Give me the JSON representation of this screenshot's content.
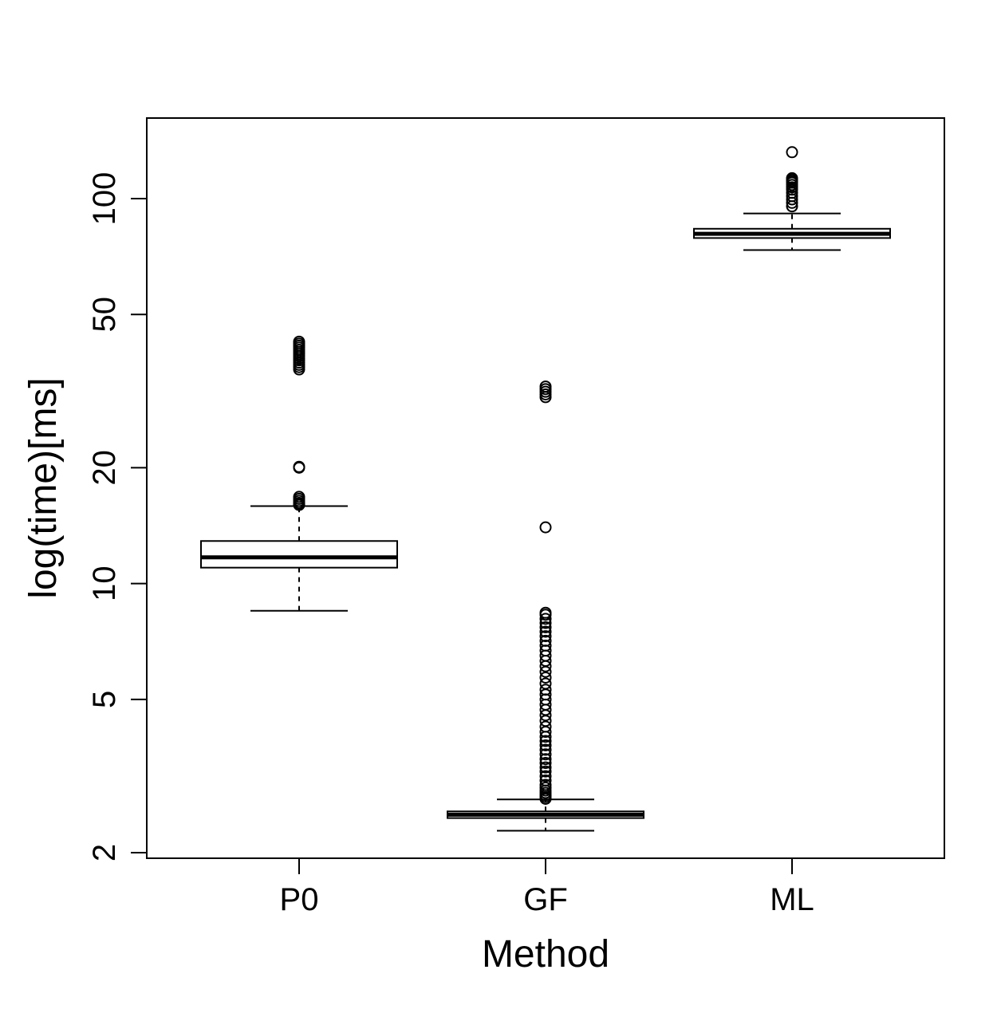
{
  "chart_data": {
    "type": "box",
    "xlabel": "Method",
    "ylabel": "log(time)[ms]",
    "y_scale": "log",
    "ylim": [
      1.95,
      160
    ],
    "y_ticks": [
      2,
      5,
      10,
      20,
      50,
      100
    ],
    "y_tick_labels": [
      "2",
      "5",
      "10",
      "20",
      "50",
      "100"
    ],
    "categories": [
      "P0",
      "GF",
      "ML"
    ],
    "grid": false,
    "legend": "none",
    "boxes": [
      {
        "category": "P0",
        "whisker_low": 8.5,
        "q1": 11.0,
        "median": 11.7,
        "q3": 12.9,
        "whisker_high": 15.9,
        "outliers": [
          16.0,
          16.1,
          16.2,
          16.4,
          16.6,
          16.8,
          20.0,
          20.1,
          36.0,
          36.5,
          37.0,
          37.5,
          38.0,
          38.5,
          39.0,
          39.5,
          40.0,
          40.5,
          41.0,
          41.5,
          42.0,
          42.5
        ]
      },
      {
        "category": "GF",
        "whisker_low": 2.28,
        "q1": 2.46,
        "median": 2.51,
        "q3": 2.56,
        "whisker_high": 2.75,
        "outliers": [
          2.76,
          2.79,
          2.82,
          2.86,
          2.9,
          2.95,
          3.0,
          3.08,
          3.16,
          3.25,
          3.33,
          3.42,
          3.5,
          3.6,
          3.7,
          3.8,
          3.9,
          4.0,
          4.12,
          4.25,
          4.4,
          4.55,
          4.7,
          4.85,
          5.0,
          5.15,
          5.3,
          5.5,
          5.7,
          5.9,
          6.1,
          6.3,
          6.5,
          6.7,
          6.9,
          7.1,
          7.3,
          7.5,
          7.7,
          7.9,
          8.1,
          8.3,
          8.4,
          14.0,
          30.5,
          31.0,
          31.5,
          32.0,
          32.5
        ]
      },
      {
        "category": "ML",
        "whisker_low": 73.5,
        "q1": 79.0,
        "median": 81.0,
        "q3": 83.5,
        "whisker_high": 91.5,
        "outliers": [
          95.5,
          97.5,
          99.5,
          101.5,
          103.5,
          105.5,
          107.0,
          108.5,
          110.0,
          111.0,
          112.0,
          113.0,
          132.0
        ]
      }
    ]
  }
}
